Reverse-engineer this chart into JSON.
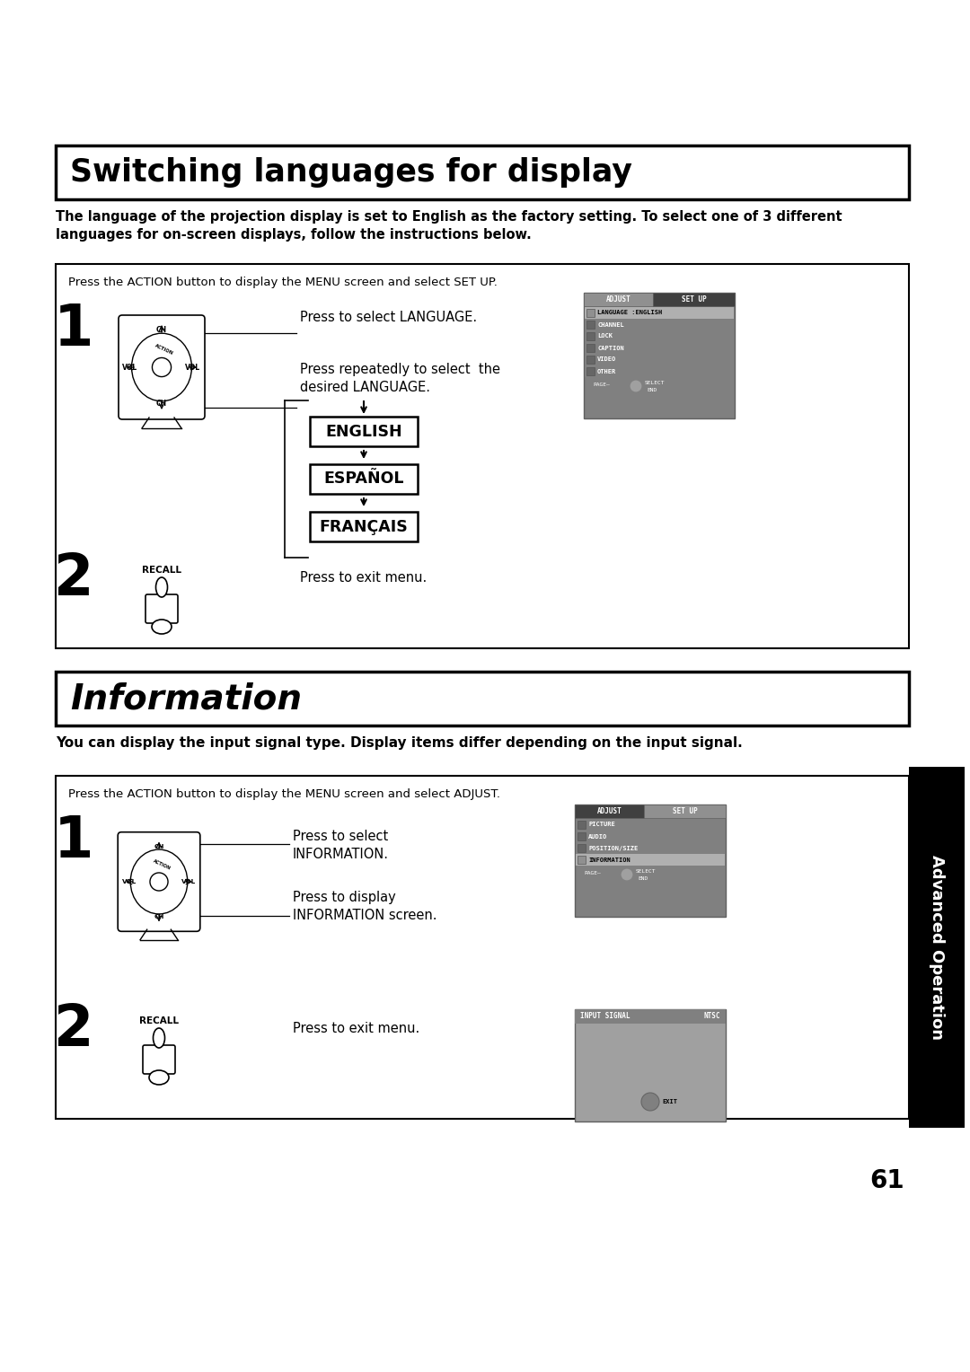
{
  "title1": "Switching languages for display",
  "title2": "Information",
  "bg_color": "#ffffff",
  "border_color": "#000000",
  "sidebar_color": "#000000",
  "sidebar_text": "Advanced Operation",
  "page_number": "61",
  "section1": {
    "intro": "The language of the projection display is set to English as the factory setting. To select one of 3 different\nlanguages for on-screen displays, follow the instructions below.",
    "box_instruction": "Press the ACTION button to display the MENU screen and select SET UP.",
    "step1_text1": "Press to select LANGUAGE.",
    "step1_text2": "Press repeatedly to select  the\ndesired LANGUAGE.",
    "step2_recall": "RECALL",
    "step2_text": "Press to exit menu.",
    "languages": [
      "ENGLISH",
      "ESPAÑOL",
      "FRANÇAIS"
    ],
    "menu_items": [
      "LANGUAGE :ENGLISH",
      "CHANNEL",
      "LOCK",
      "CAPTION",
      "VIDEO",
      "OTHER"
    ]
  },
  "section2": {
    "intro": "You can display the input signal type. Display items differ depending on the input signal.",
    "box_instruction": "Press the ACTION button to display the MENU screen and select ADJUST.",
    "step1_text1": "Press to select\nINFORMATION.",
    "step1_text2": "Press to display\nINFORMATION screen.",
    "step2_recall": "RECALL",
    "step2_text": "Press to exit menu.",
    "menu_items2": [
      "PICTURE",
      "AUDIO",
      "POSITION/SIZE",
      "INFORMATION"
    ],
    "menu_title3": "INPUT SIGNAL",
    "menu_item3": "NTSC",
    "menu_footer3": "EXIT"
  }
}
